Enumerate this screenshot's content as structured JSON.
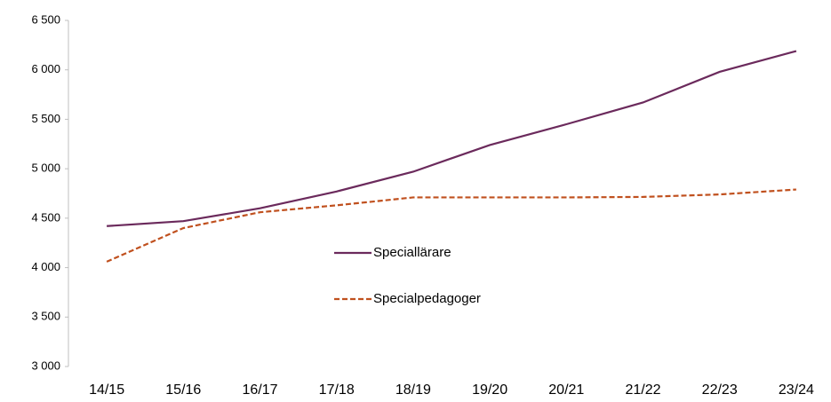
{
  "chart_data": {
    "type": "line",
    "categories": [
      "14/15",
      "15/16",
      "16/17",
      "17/18",
      "18/19",
      "19/20",
      "20/21",
      "21/22",
      "22/23",
      "23/24"
    ],
    "series": [
      {
        "name": "Speciallärare",
        "color": "#6b2a5c",
        "dash": false,
        "values": [
          4420,
          4470,
          4600,
          4770,
          4970,
          5240,
          5450,
          5670,
          5980,
          6190
        ]
      },
      {
        "name": "Specialpedagoger",
        "color": "#c0501e",
        "dash": true,
        "values": [
          4060,
          4400,
          4560,
          4630,
          4710,
          4710,
          4710,
          4715,
          4740,
          4790
        ]
      }
    ],
    "ylim": [
      3000,
      6500
    ],
    "yticks": [
      {
        "value": 3000,
        "label": "3 000"
      },
      {
        "value": 3500,
        "label": "3 500"
      },
      {
        "value": 4000,
        "label": "4 000"
      },
      {
        "value": 4500,
        "label": "4 500"
      },
      {
        "value": 5000,
        "label": "5 000"
      },
      {
        "value": 5500,
        "label": "5 500"
      },
      {
        "value": 6000,
        "label": "6 000"
      },
      {
        "value": 6500,
        "label": "6 500"
      }
    ],
    "grid": false
  }
}
